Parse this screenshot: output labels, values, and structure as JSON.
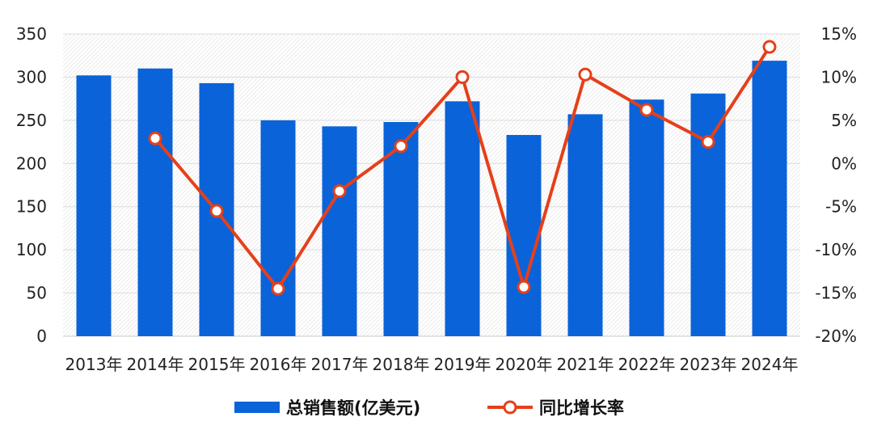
{
  "chart_data": {
    "type": "bar",
    "categories": [
      "2013年",
      "2014年",
      "2015年",
      "2016年",
      "2017年",
      "2018年",
      "2019年",
      "2020年",
      "2021年",
      "2022年",
      "2023年",
      "2024年"
    ],
    "series": [
      {
        "name": "总销售额(亿美元)",
        "type": "bar",
        "axis": "left",
        "color": "#0a63d9",
        "values": [
          302,
          310,
          293,
          250,
          243,
          248,
          272,
          233,
          257,
          274,
          281,
          319
        ]
      },
      {
        "name": "同比增长率",
        "type": "line",
        "axis": "right",
        "color": "#e5401a",
        "values": [
          null,
          2.9,
          -5.5,
          -14.5,
          -3.2,
          2.0,
          10.0,
          -14.3,
          10.3,
          6.2,
          2.5,
          13.5
        ]
      }
    ],
    "y_left": {
      "min": 0,
      "max": 350,
      "step": 50,
      "ticks": [
        "0",
        "50",
        "100",
        "150",
        "200",
        "250",
        "300",
        "350"
      ]
    },
    "y_right": {
      "min": -20,
      "max": 15,
      "step": 5,
      "ticks": [
        "-20%",
        "-15%",
        "-10%",
        "-5%",
        "0%",
        "5%",
        "10%",
        "15%"
      ]
    },
    "grid": true,
    "legend_position": "bottom",
    "title": "",
    "xlabel": "",
    "ylabel": ""
  }
}
